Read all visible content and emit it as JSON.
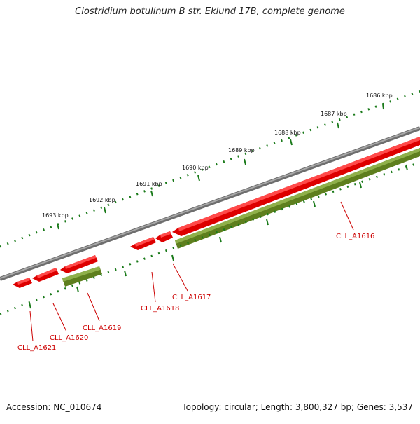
{
  "title": "Clostridium botulinum B str. Eklund 17B, complete genome",
  "footer": {
    "accession": "Accession: NC_010674",
    "stats": "Topology: circular; Length: 3,800,327 bp; Genes: 3,537"
  },
  "colors": {
    "backbone": "#808080",
    "cds_forward": "#ff0000",
    "gene_reverse": "#6b8e23",
    "ticks": "#1a7a1a",
    "gene_label": "#cc0000"
  },
  "scale_labels": [
    "1686 kbp",
    "1687 kbp",
    "1688 kbp",
    "1689 kbp",
    "1690 kbp",
    "1691 kbp",
    "1692 kbp",
    "1693 kbp"
  ],
  "gene_labels": [
    "CLL_A1616",
    "CLL_A1617",
    "CLL_A1618",
    "CLL_A1619",
    "CLL_A1620",
    "CLL_A1621"
  ]
}
